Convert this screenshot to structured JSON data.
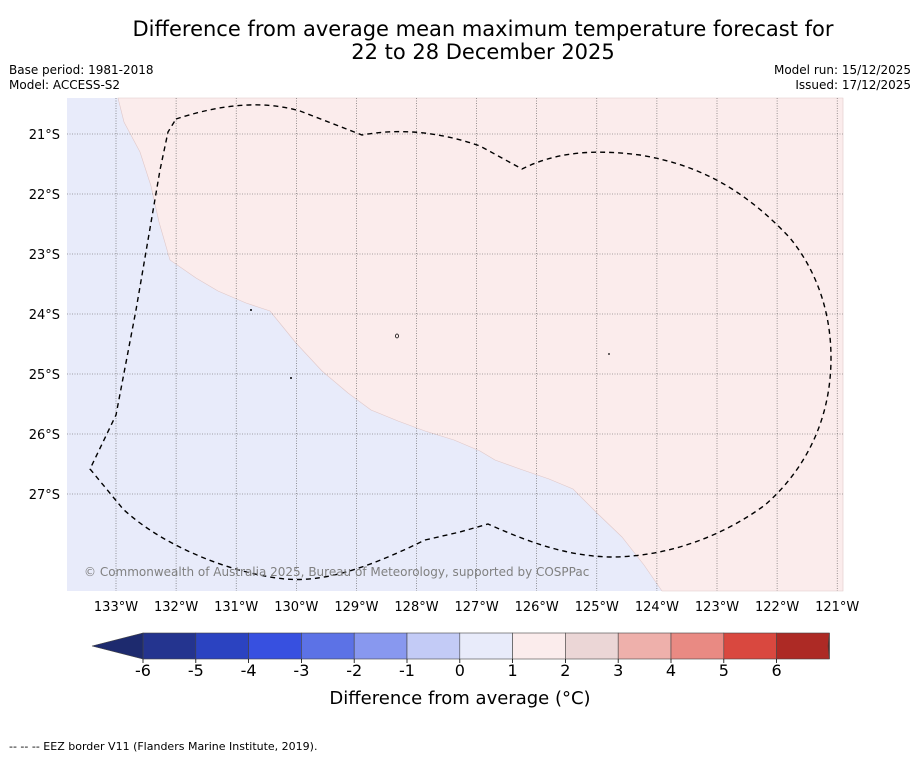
{
  "title": {
    "line1": "Difference from average mean maximum temperature forecast for",
    "line2": "22 to 28 December 2025"
  },
  "meta": {
    "base_period": "Base period: 1981-2018",
    "model": "Model: ACCESS-S2",
    "model_run": "Model run: 15/12/2025",
    "issued": "Issued: 17/12/2025"
  },
  "map": {
    "lon_labels": [
      "133°W",
      "132°W",
      "131°W",
      "130°W",
      "129°W",
      "128°W",
      "127°W",
      "126°W",
      "125°W",
      "124°W",
      "123°W",
      "122°W",
      "121°W"
    ],
    "lat_labels": [
      "21°S",
      "22°S",
      "23°S",
      "24°S",
      "25°S",
      "26°S",
      "27°S"
    ],
    "regions": [
      {
        "name": "cool region",
        "category": "-1 to 0",
        "color": "#e8ebfa"
      },
      {
        "name": "warm region",
        "category": "0 to 1",
        "color": "#fbecec"
      }
    ],
    "credit": "© Commonwealth of Australia 2025, Bureau of Meteorology, supported by COSPPac"
  },
  "colorbar": {
    "ticks": [
      "-6",
      "-5",
      "-4",
      "-3",
      "-2",
      "-1",
      "0",
      "1",
      "2",
      "3",
      "4",
      "5",
      "6"
    ],
    "colors": [
      "#24348f",
      "#2b43c1",
      "#3750e0",
      "#5c72e6",
      "#8898ef",
      "#c3cbf6",
      "#e8ebfa",
      "#fbecec",
      "#ebd6d6",
      "#eeb0ab",
      "#e98a83",
      "#d9483f",
      "#ad2a25"
    ],
    "under_color": "#1d2a6e",
    "over_color": "#6b1f1b",
    "label": "Difference from average (°C)"
  },
  "footnote": "--  --  -- EEZ border V11 (Flanders Marine Institute, 2019)."
}
